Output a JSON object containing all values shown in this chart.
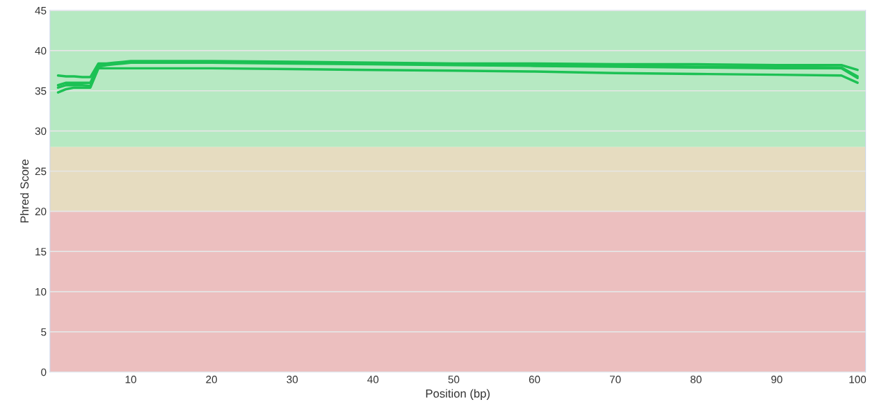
{
  "chart_data": {
    "type": "line",
    "xlabel": "Position (bp)",
    "ylabel": "Phred Score",
    "x": [
      1,
      2,
      3,
      4,
      5,
      6,
      7,
      8,
      9,
      10,
      20,
      30,
      40,
      50,
      60,
      70,
      80,
      90,
      98,
      100
    ],
    "xlim": [
      0,
      101
    ],
    "xticks": [
      10,
      20,
      30,
      40,
      50,
      60,
      70,
      80,
      90,
      100
    ],
    "ylim": [
      0,
      45
    ],
    "yticks": [
      0,
      5,
      10,
      15,
      20,
      25,
      30,
      35,
      40,
      45
    ],
    "grid": "y",
    "marker": "none",
    "line_style": "solid",
    "bands": [
      {
        "axis": "y",
        "from": 28,
        "to": 45,
        "color": "#b6e9c2"
      },
      {
        "axis": "y",
        "from": 20,
        "to": 28,
        "color": "#e6dcc0"
      },
      {
        "axis": "y",
        "from": 0,
        "to": 20,
        "color": "#ecbfbf"
      }
    ],
    "series": [
      {
        "color": "#1cc154",
        "values": [
          36.9,
          36.8,
          36.8,
          36.7,
          36.7,
          38.4,
          38.4,
          38.5,
          38.6,
          38.7,
          38.7,
          38.6,
          38.5,
          38.4,
          38.4,
          38.3,
          38.3,
          38.2,
          38.2,
          37.6
        ]
      },
      {
        "color": "#1cc154",
        "values": [
          35.7,
          36.0,
          36.0,
          36.0,
          36.0,
          38.2,
          38.3,
          38.4,
          38.5,
          38.6,
          38.6,
          38.5,
          38.4,
          38.3,
          38.2,
          38.1,
          38.0,
          38.0,
          37.9,
          36.8
        ]
      },
      {
        "color": "#1cc154",
        "values": [
          35.4,
          35.7,
          35.7,
          35.7,
          35.6,
          38.0,
          38.2,
          38.3,
          38.4,
          38.5,
          38.5,
          38.4,
          38.3,
          38.2,
          38.1,
          38.0,
          37.9,
          37.8,
          37.8,
          36.6
        ]
      },
      {
        "color": "#1cc154",
        "values": [
          34.8,
          35.2,
          35.4,
          35.4,
          35.4,
          37.8,
          37.8,
          37.8,
          37.8,
          37.8,
          37.8,
          37.7,
          37.6,
          37.5,
          37.4,
          37.2,
          37.1,
          37.0,
          36.9,
          36.0
        ]
      }
    ]
  }
}
